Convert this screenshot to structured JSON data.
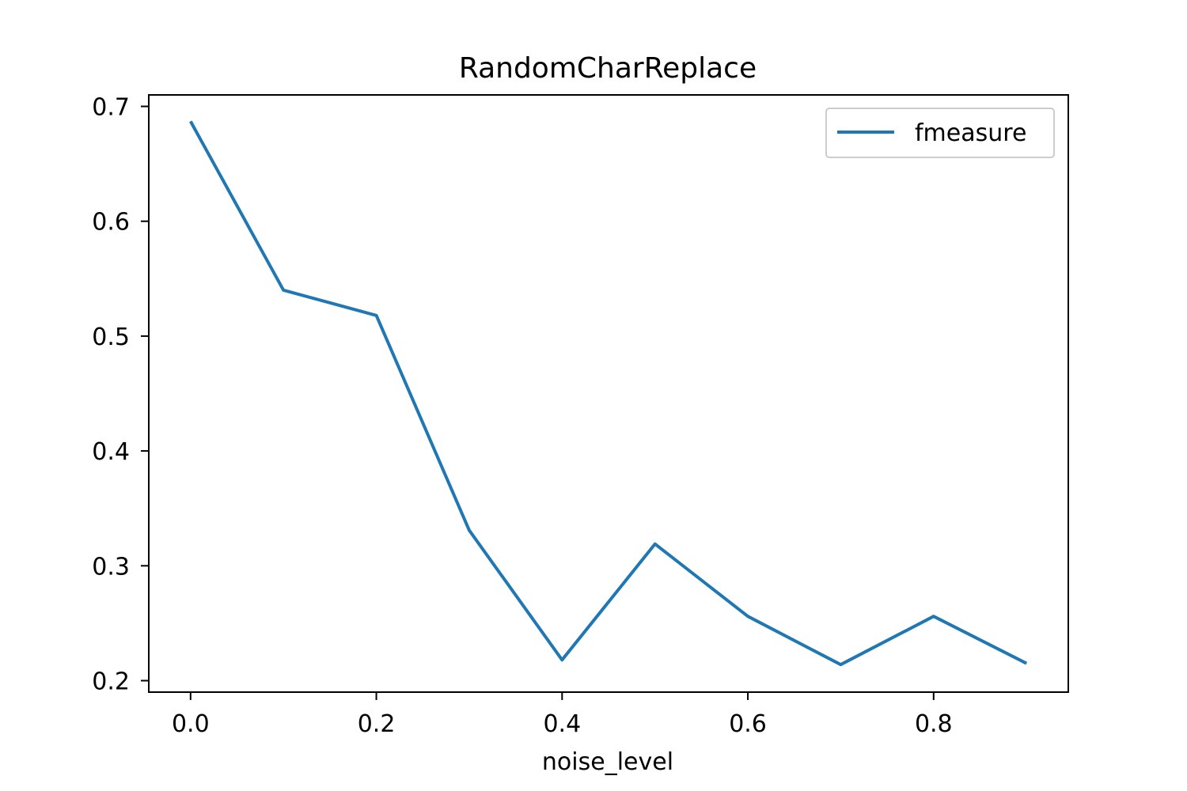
{
  "chart_data": {
    "type": "line",
    "title": "RandomCharReplace",
    "xlabel": "noise_level",
    "ylabel": "",
    "xlim": [
      -0.045,
      0.945
    ],
    "ylim": [
      0.19,
      0.71
    ],
    "x_ticks": [
      "0.0",
      "0.2",
      "0.4",
      "0.6",
      "0.8"
    ],
    "x_tick_values": [
      0.0,
      0.2,
      0.4,
      0.6,
      0.8
    ],
    "y_ticks": [
      "0.2",
      "0.3",
      "0.4",
      "0.5",
      "0.6",
      "0.7"
    ],
    "y_tick_values": [
      0.2,
      0.3,
      0.4,
      0.5,
      0.6,
      0.7
    ],
    "grid": false,
    "legend_position": "top-right",
    "series": [
      {
        "name": "fmeasure",
        "color": "#1f77b4",
        "x": [
          0.0,
          0.1,
          0.2,
          0.3,
          0.4,
          0.5,
          0.6,
          0.7,
          0.8,
          0.9
        ],
        "y": [
          0.687,
          0.54,
          0.518,
          0.331,
          0.218,
          0.319,
          0.256,
          0.214,
          0.256,
          0.215
        ]
      }
    ]
  }
}
